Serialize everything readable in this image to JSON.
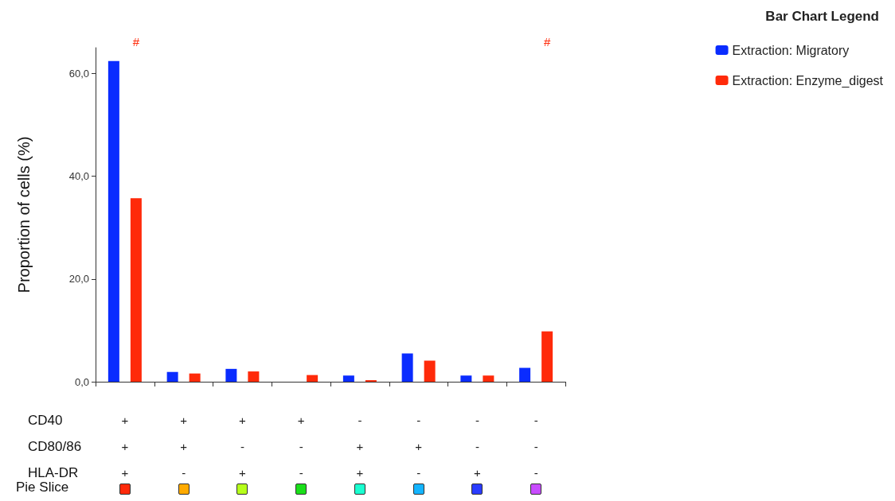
{
  "chart_data": {
    "type": "bar",
    "ylabel": "Proportion of cells (%)",
    "legend_title": "Bar Chart Legend",
    "categories": [
      "+\n+\n+",
      "+\n+\n-",
      "+\n-\n+",
      "+\n-\n-",
      "-\n+\n+",
      "-\n+\n-",
      "-\n-\n+",
      "-\n-\n-"
    ],
    "series": [
      {
        "name": "Extraction: Migratory",
        "color": "#0a2cff",
        "values": [
          62.4,
          1.9,
          2.5,
          0,
          1.2,
          5.5,
          1.2,
          2.7
        ]
      },
      {
        "name": "Extraction: Enzyme_digest",
        "color": "#ff2a0a",
        "values": [
          35.7,
          1.6,
          2.0,
          1.3,
          0.3,
          4.1,
          1.2,
          9.8
        ]
      }
    ],
    "ylim": [
      0,
      65
    ],
    "yticks": [
      {
        "value": 0,
        "label": "0,0"
      },
      {
        "value": 20,
        "label": "20,0"
      },
      {
        "value": 40,
        "label": "40,0"
      },
      {
        "value": 60,
        "label": "60,0"
      }
    ],
    "grid": false,
    "legend": "top right",
    "annotations": [
      "CD40",
      "CD80/86",
      "HLA-DR",
      "Pie Slice",
      "#",
      "#"
    ]
  }
}
